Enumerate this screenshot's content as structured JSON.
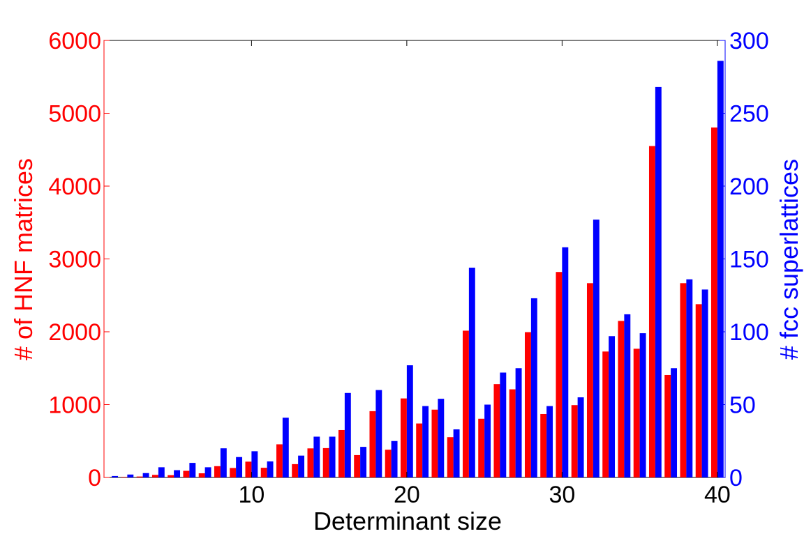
{
  "chart_data": {
    "type": "bar",
    "xlabel": "Determinant size",
    "ylabel_left": "# of HNF matrices",
    "ylabel_right": "# fcc superlattices",
    "xlim": [
      0.5,
      40.5
    ],
    "ylim_left": [
      0,
      6000
    ],
    "ylim_right": [
      0,
      300
    ],
    "x_ticks": [
      10,
      20,
      30,
      40
    ],
    "y_ticks_left": [
      0,
      1000,
      2000,
      3000,
      4000,
      5000,
      6000
    ],
    "y_ticks_right": [
      0,
      50,
      100,
      150,
      200,
      250,
      300
    ],
    "grid": false,
    "colors": {
      "left_axis": "#ff0000",
      "right_axis": "#0000ff"
    },
    "categories": [
      1,
      2,
      3,
      4,
      5,
      6,
      7,
      8,
      9,
      10,
      11,
      12,
      13,
      14,
      15,
      16,
      17,
      18,
      19,
      20,
      21,
      22,
      23,
      24,
      25,
      26,
      27,
      28,
      29,
      30,
      31,
      32,
      33,
      34,
      35,
      36,
      37,
      38,
      39,
      40
    ],
    "series": [
      {
        "name": "# of HNF matrices",
        "axis": "left",
        "color": "#ff0000",
        "values": [
          1,
          7,
          13,
          35,
          31,
          91,
          57,
          155,
          130,
          217,
          133,
          455,
          183,
          399,
          403,
          651,
          307,
          910,
          381,
          1085,
          741,
          931,
          553,
          2015,
          806,
          1281,
          1210,
          1995,
          871,
          2821,
          993,
          2667,
          1729,
          2149,
          1767,
          4550,
          1407,
          2667,
          2379,
          4805
        ]
      },
      {
        "name": "# fcc superlattices",
        "axis": "right",
        "color": "#0000ff",
        "values": [
          1,
          2,
          3,
          7,
          5,
          10,
          7,
          20,
          14,
          18,
          11,
          41,
          15,
          28,
          28,
          58,
          21,
          60,
          25,
          77,
          49,
          54,
          33,
          144,
          50,
          72,
          75,
          123,
          49,
          158,
          55,
          177,
          97,
          112,
          99,
          268,
          75,
          136,
          129,
          286
        ]
      }
    ]
  }
}
